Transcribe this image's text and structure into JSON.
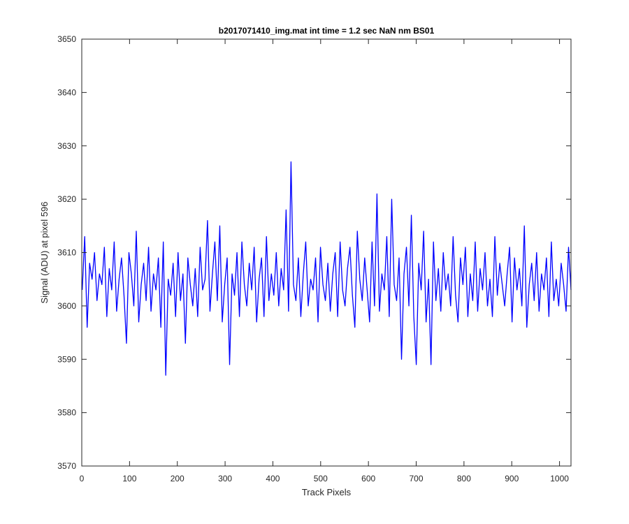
{
  "chart_data": {
    "type": "line",
    "title": "b2017071410_img.mat int time = 1.2 sec  NaN nm BS01",
    "xlabel": "Track Pixels",
    "ylabel": "Signal (ADU) at pixel 596",
    "xlim": [
      0,
      1024
    ],
    "ylim": [
      3570,
      3650
    ],
    "xticks": [
      0,
      100,
      200,
      300,
      400,
      500,
      600,
      700,
      800,
      900,
      1000
    ],
    "yticks": [
      3570,
      3580,
      3590,
      3600,
      3610,
      3620,
      3630,
      3640,
      3650
    ],
    "grid": false,
    "legend": "none",
    "series": [
      {
        "color": "#0000ff",
        "x_start": 1,
        "x_step": 1,
        "note_on_values": "values approximated from the plotted noisy trace",
        "values": [
          3603,
          3613,
          3596,
          3608,
          3605,
          3610,
          3601,
          3606,
          3604,
          3611,
          3598,
          3607,
          3603,
          3612,
          3599,
          3605,
          3609,
          3602,
          3593,
          3610,
          3606,
          3600,
          3614,
          3597,
          3604,
          3608,
          3601,
          3611,
          3599,
          3606,
          3603,
          3609,
          3596,
          3612,
          3587,
          3605,
          3602,
          3608,
          3598,
          3610,
          3601,
          3606,
          3593,
          3609,
          3604,
          3600,
          3607,
          3598,
          3611,
          3603,
          3605,
          3616,
          3599,
          3606,
          3612,
          3601,
          3615,
          3597,
          3604,
          3609,
          3589,
          3606,
          3602,
          3610,
          3598,
          3612,
          3604,
          3600,
          3608,
          3603,
          3611,
          3597,
          3605,
          3609,
          3598,
          3613,
          3601,
          3606,
          3602,
          3610,
          3600,
          3607,
          3603,
          3618,
          3599,
          3627,
          3604,
          3601,
          3609,
          3598,
          3606,
          3612,
          3600,
          3605,
          3603,
          3609,
          3597,
          3611,
          3604,
          3601,
          3608,
          3599,
          3606,
          3610,
          3598,
          3612,
          3603,
          3600,
          3607,
          3611,
          3602,
          3596,
          3614,
          3605,
          3601,
          3609,
          3603,
          3597,
          3612,
          3600,
          3621,
          3599,
          3606,
          3603,
          3613,
          3598,
          3620,
          3604,
          3601,
          3609,
          3590,
          3606,
          3611,
          3600,
          3617,
          3598,
          3589,
          3608,
          3603,
          3614,
          3597,
          3605,
          3589,
          3612,
          3601,
          3607,
          3599,
          3610,
          3603,
          3606,
          3600,
          3613,
          3602,
          3597,
          3609,
          3604,
          3611,
          3598,
          3606,
          3601,
          3612,
          3599,
          3607,
          3603,
          3610,
          3600,
          3605,
          3598,
          3613,
          3602,
          3608,
          3604,
          3600,
          3606,
          3611,
          3597,
          3609,
          3603,
          3607,
          3600,
          3615,
          3596,
          3604,
          3608,
          3601,
          3610,
          3599,
          3606,
          3603,
          3609,
          3598,
          3612,
          3601,
          3605,
          3600,
          3608,
          3604,
          3599,
          3611,
          3603
        ]
      }
    ]
  }
}
